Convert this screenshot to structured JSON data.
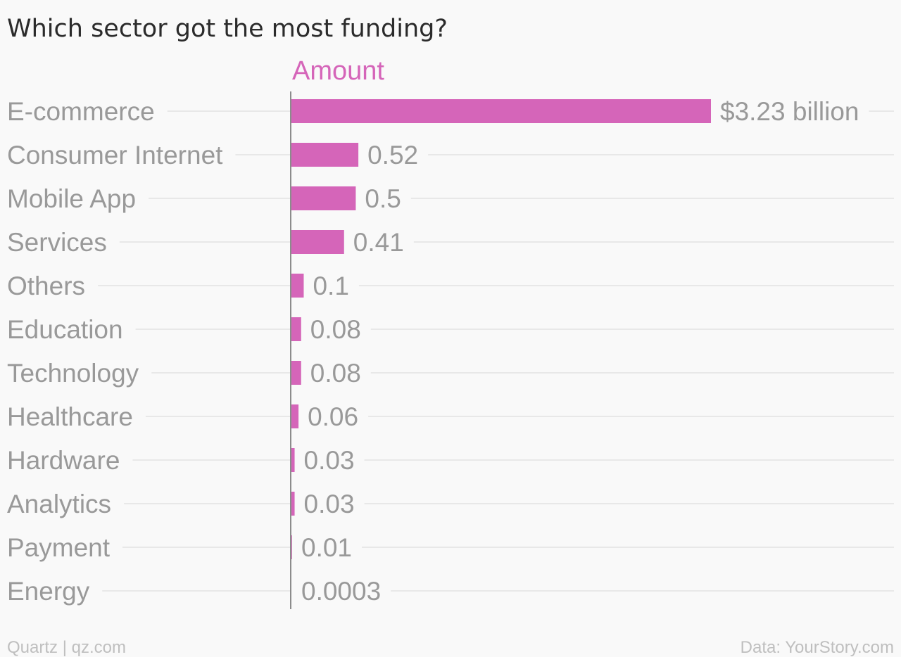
{
  "chart_data": {
    "type": "bar",
    "orientation": "horizontal",
    "title": "Which sector got the most funding?",
    "series": [
      {
        "name": "Amount",
        "color": "#d565b9",
        "values": [
          3.23,
          0.52,
          0.5,
          0.41,
          0.1,
          0.08,
          0.08,
          0.06,
          0.03,
          0.03,
          0.01,
          0.0003
        ]
      }
    ],
    "categories": [
      "E-commerce",
      "Consumer Internet",
      "Mobile App",
      "Services",
      "Others",
      "Education",
      "Technology",
      "Healthcare",
      "Hardware",
      "Analytics",
      "Payment",
      "Energy"
    ],
    "value_labels": [
      "$3.23 billion",
      "0.52",
      "0.5",
      "0.41",
      "0.1",
      "0.08",
      "0.08",
      "0.06",
      "0.03",
      "0.03",
      "0.01",
      "0.0003"
    ],
    "xlim": [
      0,
      3.23
    ],
    "grid": true,
    "source": "Data: YourStory.com",
    "credit": "Quartz | qz.com"
  }
}
